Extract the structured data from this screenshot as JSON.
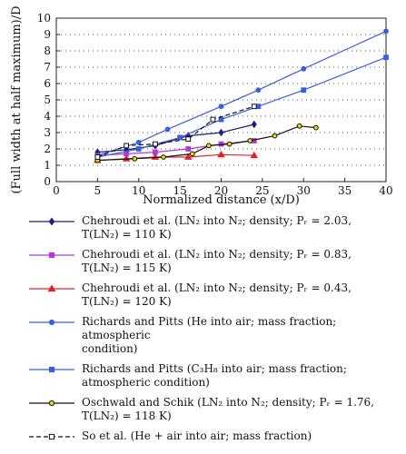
{
  "chart_data": {
    "type": "line",
    "xlabel": "Normalized distance (x/D)",
    "ylabel": "(Full width at half maximum)/D",
    "xlim": [
      0,
      40
    ],
    "ylim": [
      0,
      10
    ],
    "xticks": [
      0,
      5,
      10,
      15,
      20,
      25,
      30,
      35,
      40
    ],
    "yticks": [
      0,
      1,
      2,
      3,
      4,
      5,
      6,
      7,
      8,
      9,
      10
    ],
    "grid": "dotted-horizontal",
    "legend_position": "below",
    "series": [
      {
        "name": "Chehroudi et al. (LN₂ into N₂; density; Pᵣ = 2.03,\nT(LN₂) = 110 K)",
        "color": "#1a1f7a",
        "marker": "diamond",
        "dash": "solid",
        "x": [
          5,
          8.5,
          12,
          16,
          20,
          24
        ],
        "y": [
          1.8,
          1.95,
          2.2,
          2.8,
          3.0,
          3.5
        ]
      },
      {
        "name": "Chehroudi et al. (LN₂ into N₂; density; Pᵣ = 0.83,\nT(LN₂) = 115 K)",
        "color": "#b03ad8",
        "marker": "square",
        "dash": "solid",
        "x": [
          5,
          8.5,
          12,
          16,
          20,
          24
        ],
        "y": [
          1.6,
          1.7,
          1.8,
          2.0,
          2.3,
          2.5
        ]
      },
      {
        "name": "Chehroudi et al. (LN₂ into N₂; density; Pᵣ = 0.43,\nT(LN₂) = 120 K)",
        "color": "#e0202a",
        "marker": "triangle",
        "dash": "solid",
        "x": [
          5,
          8.5,
          12,
          16,
          20,
          24
        ],
        "y": [
          1.3,
          1.4,
          1.5,
          1.5,
          1.65,
          1.6
        ]
      },
      {
        "name": "Richards and Pitts (He into air; mass fraction; atmospheric\ncondition)",
        "color": "#3a5fd8",
        "marker": "circle",
        "dash": "solid",
        "x": [
          5,
          10,
          13.5,
          20,
          24.5,
          30,
          40
        ],
        "y": [
          1.6,
          2.4,
          3.2,
          4.6,
          5.6,
          6.9,
          9.2
        ]
      },
      {
        "name": "Richards and Pitts (C₃H₈ into air; mass fraction;\natmospheric condition)",
        "color": "#3a5fd8",
        "marker": "square",
        "dash": "solid",
        "x": [
          5,
          10,
          15,
          20,
          24.5,
          30,
          40
        ],
        "y": [
          1.5,
          2.0,
          2.7,
          3.8,
          4.6,
          5.6,
          7.6
        ]
      },
      {
        "name": "Oschwald and Schik (LN₂ into N₂; density; Pᵣ = 1.76,\nT(LN₂) = 118 K)",
        "color": "#111111",
        "marker": "circle",
        "marker_fill": "#e2e200",
        "dash": "solid",
        "x": [
          5,
          9.5,
          13,
          16.5,
          18.5,
          21,
          23.5,
          26.5,
          29.5,
          31.5
        ],
        "y": [
          1.3,
          1.4,
          1.5,
          1.7,
          2.2,
          2.3,
          2.5,
          2.8,
          3.4,
          3.3
        ]
      },
      {
        "name": "So et al. (He + air into air; mass fraction)",
        "color": "#111111",
        "marker": "square",
        "marker_fill": "#ffffff",
        "dash": "dashed",
        "x": [
          5,
          8.5,
          12,
          16,
          19,
          24
        ],
        "y": [
          1.5,
          2.2,
          2.3,
          2.6,
          3.8,
          4.6
        ]
      }
    ]
  }
}
